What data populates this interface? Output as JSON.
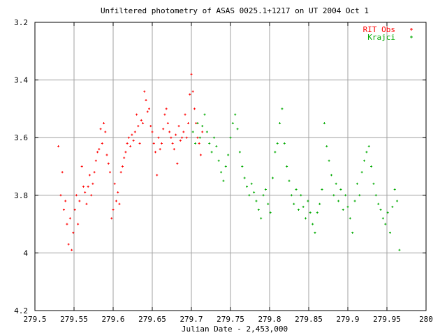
{
  "chart_data": {
    "type": "scatter",
    "title": "Unfiltered photometry of ASAS 0025.1+1217 on UT 2004 Oct 1",
    "xlabel": "Julian Date - 2,453,000",
    "ylabel": "",
    "xlim": [
      279.5,
      280.0
    ],
    "ylim": [
      3.2,
      4.2
    ],
    "y_inverted": true,
    "grid": true,
    "legend_position": "top-right",
    "x_ticks": [
      279.5,
      279.55,
      279.6,
      279.65,
      279.7,
      279.75,
      279.8,
      279.85,
      279.9,
      279.95,
      280.0
    ],
    "x_tick_labels": [
      "279.5",
      "279.55",
      "279.6",
      "279.65",
      "279.7",
      "279.75",
      "279.8",
      "279.85",
      "279.9",
      "279.95",
      "280"
    ],
    "y_ticks": [
      3.2,
      3.4,
      3.6,
      3.8,
      4.0,
      4.2
    ],
    "y_tick_labels": [
      "3.2",
      "3.4",
      "3.6",
      "3.8",
      "4",
      "4.2"
    ],
    "series": [
      {
        "name": "RIT Obs",
        "color": "#ff0000",
        "marker": "+",
        "x": [
          279.53,
          279.533,
          279.535,
          279.537,
          279.539,
          279.541,
          279.543,
          279.545,
          279.547,
          279.549,
          279.551,
          279.553,
          279.555,
          279.557,
          279.56,
          279.562,
          279.564,
          279.566,
          279.568,
          279.57,
          279.572,
          279.574,
          279.576,
          279.578,
          279.58,
          279.582,
          279.584,
          279.586,
          279.588,
          279.59,
          279.592,
          279.594,
          279.596,
          279.598,
          279.6,
          279.602,
          279.604,
          279.606,
          279.608,
          279.61,
          279.612,
          279.614,
          279.616,
          279.618,
          279.62,
          279.622,
          279.624,
          279.626,
          279.628,
          279.63,
          279.632,
          279.634,
          279.636,
          279.638,
          279.64,
          279.642,
          279.644,
          279.646,
          279.648,
          279.65,
          279.652,
          279.654,
          279.656,
          279.658,
          279.66,
          279.662,
          279.664,
          279.666,
          279.668,
          279.67,
          279.672,
          279.674,
          279.676,
          279.678,
          279.68,
          279.682,
          279.684,
          279.686,
          279.688,
          279.69,
          279.692,
          279.694,
          279.696,
          279.698,
          279.7,
          279.702,
          279.704,
          279.706,
          279.708,
          279.71,
          279.712,
          279.714
        ],
        "y": [
          3.63,
          3.8,
          3.72,
          3.85,
          3.82,
          3.9,
          3.97,
          3.88,
          3.99,
          3.93,
          3.85,
          3.8,
          3.9,
          3.82,
          3.7,
          3.77,
          3.79,
          3.83,
          3.77,
          3.73,
          3.8,
          3.76,
          3.72,
          3.68,
          3.65,
          3.64,
          3.57,
          3.62,
          3.55,
          3.58,
          3.66,
          3.69,
          3.72,
          3.88,
          3.85,
          3.76,
          3.82,
          3.79,
          3.83,
          3.72,
          3.7,
          3.67,
          3.65,
          3.62,
          3.6,
          3.63,
          3.59,
          3.61,
          3.58,
          3.52,
          3.56,
          3.62,
          3.54,
          3.55,
          3.44,
          3.47,
          3.51,
          3.5,
          3.56,
          3.58,
          3.62,
          3.65,
          3.73,
          3.6,
          3.64,
          3.62,
          3.57,
          3.52,
          3.5,
          3.55,
          3.58,
          3.6,
          3.62,
          3.64,
          3.59,
          3.69,
          3.56,
          3.61,
          3.6,
          3.58,
          3.52,
          3.6,
          3.55,
          3.45,
          3.38,
          3.44,
          3.5,
          3.55,
          3.6,
          3.62,
          3.66,
          3.58
        ]
      },
      {
        "name": "Krajci",
        "color": "#00aa00",
        "marker": "+",
        "x": [
          279.702,
          279.705,
          279.708,
          279.711,
          279.714,
          279.717,
          279.72,
          279.723,
          279.726,
          279.729,
          279.732,
          279.735,
          279.738,
          279.741,
          279.744,
          279.747,
          279.75,
          279.753,
          279.756,
          279.759,
          279.762,
          279.765,
          279.768,
          279.771,
          279.774,
          279.777,
          279.78,
          279.783,
          279.786,
          279.789,
          279.792,
          279.795,
          279.798,
          279.801,
          279.804,
          279.807,
          279.81,
          279.813,
          279.816,
          279.819,
          279.822,
          279.825,
          279.828,
          279.831,
          279.834,
          279.837,
          279.84,
          279.843,
          279.846,
          279.849,
          279.852,
          279.855,
          279.858,
          279.861,
          279.864,
          279.867,
          279.87,
          279.873,
          279.876,
          279.879,
          279.882,
          279.885,
          279.888,
          279.891,
          279.894,
          279.897,
          279.9,
          279.903,
          279.906,
          279.909,
          279.912,
          279.915,
          279.918,
          279.921,
          279.924,
          279.927,
          279.93,
          279.933,
          279.936,
          279.939,
          279.942,
          279.945,
          279.948,
          279.951,
          279.954,
          279.957,
          279.96,
          279.963,
          279.966
        ],
        "y": [
          3.58,
          3.62,
          3.55,
          3.6,
          3.56,
          3.52,
          3.58,
          3.62,
          3.65,
          3.6,
          3.63,
          3.68,
          3.72,
          3.75,
          3.7,
          3.66,
          3.6,
          3.55,
          3.52,
          3.57,
          3.65,
          3.7,
          3.74,
          3.77,
          3.8,
          3.76,
          3.79,
          3.82,
          3.85,
          3.88,
          3.8,
          3.78,
          3.83,
          3.86,
          3.74,
          3.65,
          3.62,
          3.55,
          3.5,
          3.62,
          3.7,
          3.75,
          3.8,
          3.83,
          3.78,
          3.85,
          3.8,
          3.84,
          3.88,
          3.82,
          3.86,
          3.9,
          3.93,
          3.86,
          3.83,
          3.78,
          3.55,
          3.63,
          3.68,
          3.73,
          3.8,
          3.76,
          3.82,
          3.78,
          3.85,
          3.8,
          3.84,
          3.88,
          3.93,
          3.82,
          3.76,
          3.8,
          3.72,
          3.68,
          3.65,
          3.63,
          3.7,
          3.76,
          3.8,
          3.83,
          3.85,
          3.88,
          3.9,
          3.86,
          3.93,
          3.84,
          3.78,
          3.82,
          3.99
        ]
      }
    ]
  }
}
